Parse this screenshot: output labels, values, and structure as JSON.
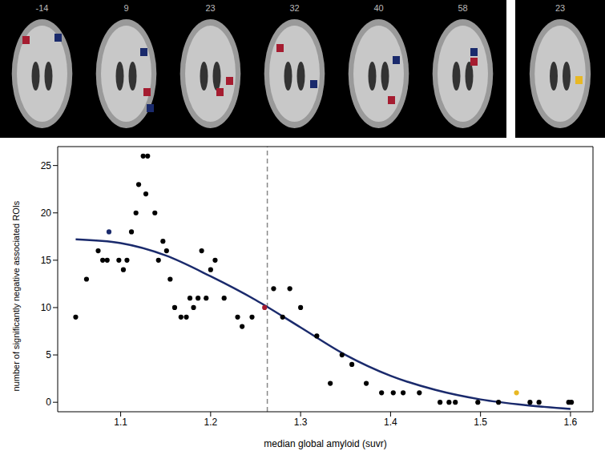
{
  "slices": [
    "-14",
    "9",
    "23",
    "32",
    "40",
    "58"
  ],
  "inset_slice": "23",
  "chart_data": {
    "type": "scatter",
    "xlabel": "median global amyloid (suvr)",
    "ylabel": "number of significantly negative associated ROIs",
    "x": [
      1.05,
      1.062,
      1.075,
      1.08,
      1.085,
      1.087,
      1.098,
      1.103,
      1.107,
      1.112,
      1.117,
      1.12,
      1.125,
      1.13,
      1.128,
      1.138,
      1.142,
      1.147,
      1.151,
      1.155,
      1.16,
      1.167,
      1.173,
      1.177,
      1.181,
      1.186,
      1.19,
      1.195,
      1.2,
      1.205,
      1.215,
      1.23,
      1.235,
      1.246,
      1.26,
      1.27,
      1.28,
      1.288,
      1.3,
      1.318,
      1.333,
      1.346,
      1.357,
      1.373,
      1.39,
      1.403,
      1.414,
      1.432,
      1.455,
      1.465,
      1.472,
      1.497,
      1.52,
      1.54,
      1.555,
      1.565,
      1.598,
      1.601
    ],
    "values": [
      9,
      13,
      16,
      15,
      15,
      18,
      15,
      14,
      15,
      18,
      20,
      23,
      26,
      26,
      22,
      20,
      15,
      17,
      16,
      13,
      10,
      9,
      9,
      11,
      10,
      11,
      16,
      11,
      14,
      15,
      11,
      9,
      8,
      9,
      10,
      12,
      9,
      12,
      10,
      7,
      2,
      5,
      4,
      2,
      1,
      1,
      1,
      1,
      0,
      0,
      0,
      0,
      0,
      1,
      0,
      0,
      0,
      0
    ],
    "colors": [
      "#000000",
      "#000000",
      "#000000",
      "#000000",
      "#000000",
      "#1a2a6c",
      "#000000",
      "#000000",
      "#000000",
      "#000000",
      "#000000",
      "#000000",
      "#000000",
      "#000000",
      "#000000",
      "#000000",
      "#000000",
      "#000000",
      "#000000",
      "#000000",
      "#000000",
      "#000000",
      "#000000",
      "#000000",
      "#000000",
      "#000000",
      "#000000",
      "#000000",
      "#000000",
      "#000000",
      "#000000",
      "#000000",
      "#000000",
      "#000000",
      "#a51c30",
      "#000000",
      "#000000",
      "#000000",
      "#000000",
      "#000000",
      "#000000",
      "#000000",
      "#000000",
      "#000000",
      "#000000",
      "#000000",
      "#000000",
      "#000000",
      "#000000",
      "#000000",
      "#000000",
      "#000000",
      "#000000",
      "#e8b824",
      "#000000",
      "#000000",
      "#000000",
      "#000000"
    ],
    "fit": {
      "x": [
        1.05,
        1.1,
        1.15,
        1.2,
        1.25,
        1.3,
        1.35,
        1.4,
        1.45,
        1.5,
        1.55,
        1.6
      ],
      "values": [
        17.2,
        16.8,
        15.5,
        13.3,
        10.8,
        7.9,
        5.0,
        2.8,
        1.3,
        0.3,
        -0.3,
        -0.7
      ],
      "color": "#1a2a6c"
    },
    "threshold_x": 1.263,
    "xlim": [
      1.03,
      1.625
    ],
    "ylim": [
      -1,
      27
    ],
    "xticks": [
      1.1,
      1.2,
      1.3,
      1.4,
      1.5,
      1.6
    ],
    "yticks": [
      0,
      5,
      10,
      15,
      20,
      25
    ]
  }
}
